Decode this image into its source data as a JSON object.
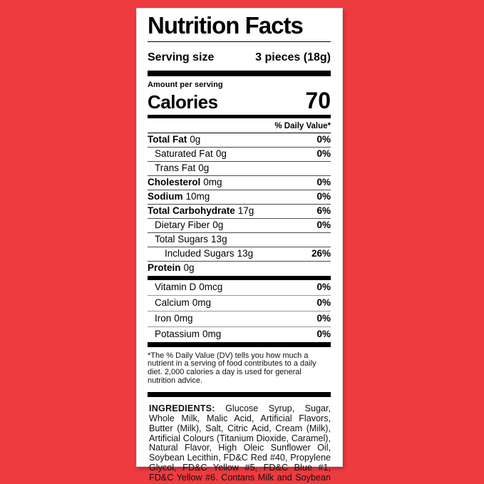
{
  "colors": {
    "background": "#ee3b40",
    "label_background": "#ffffff",
    "text": "#000000",
    "vitamin_divider": "#9a9a9a"
  },
  "label": {
    "title": "Nutrition Facts",
    "serving": {
      "label": "Serving size",
      "value": "3 pieces (18g)"
    },
    "calories": {
      "amount_label": "Amount per serving",
      "label": "Calories",
      "value": "70"
    },
    "daily_value_header": "% Daily Value*",
    "rows": [
      {
        "name": "Total Fat",
        "amount": "0g",
        "dv": "0%"
      },
      {
        "name": "Saturated Fat",
        "amount": "0g",
        "dv": "0%"
      },
      {
        "name": "Trans Fat",
        "amount": "0g",
        "dv": ""
      },
      {
        "name": "Cholesterol",
        "amount": "0mg",
        "dv": "0%"
      },
      {
        "name": "Sodium",
        "amount": "10mg",
        "dv": "0%"
      },
      {
        "name": "Total Carbohydrate",
        "amount": "17g",
        "dv": "6%"
      },
      {
        "name": "Dietary Fiber",
        "amount": "0g",
        "dv": "0%"
      },
      {
        "name": "Total Sugars",
        "amount": "13g",
        "dv": ""
      },
      {
        "name": "Included Sugars",
        "amount": "13g",
        "dv": "26%"
      },
      {
        "name": "Protein",
        "amount": "0g",
        "dv": ""
      }
    ],
    "vitamins": [
      {
        "name": "Vitamin D",
        "amount": "0mcg",
        "dv": "0%"
      },
      {
        "name": "Calcium",
        "amount": "0mg",
        "dv": "0%"
      },
      {
        "name": "Iron",
        "amount": "0mg",
        "dv": "0%"
      },
      {
        "name": "Potassium",
        "amount": "0mg",
        "dv": "0%"
      }
    ],
    "footnote": "*The % Daily Value (DV) tells you how much a nutrient in a serving of food contributes to a daily diet. 2,000 calories a day is used for general nutrition advice.",
    "ingredients": {
      "label": "INGREDIENTS:",
      "text": "Glucose Syrup, Sugar, Whole Milk, Malic Acid, Artificial Flavors, Butter (Milk), Salt, Citric Acid, Cream (Milk), Artificial Colours (Titanium Dioxide, Caramel), Natural Flavor, High Oleic Sunflower Oil, Soybean Lecithin, FD&C Red #40, Propylene Glycol, FD&C Yellow #5, FD&C Blue #1,  FD&C Yellow #6. Contans Milk and Soybean Derivates."
    }
  }
}
